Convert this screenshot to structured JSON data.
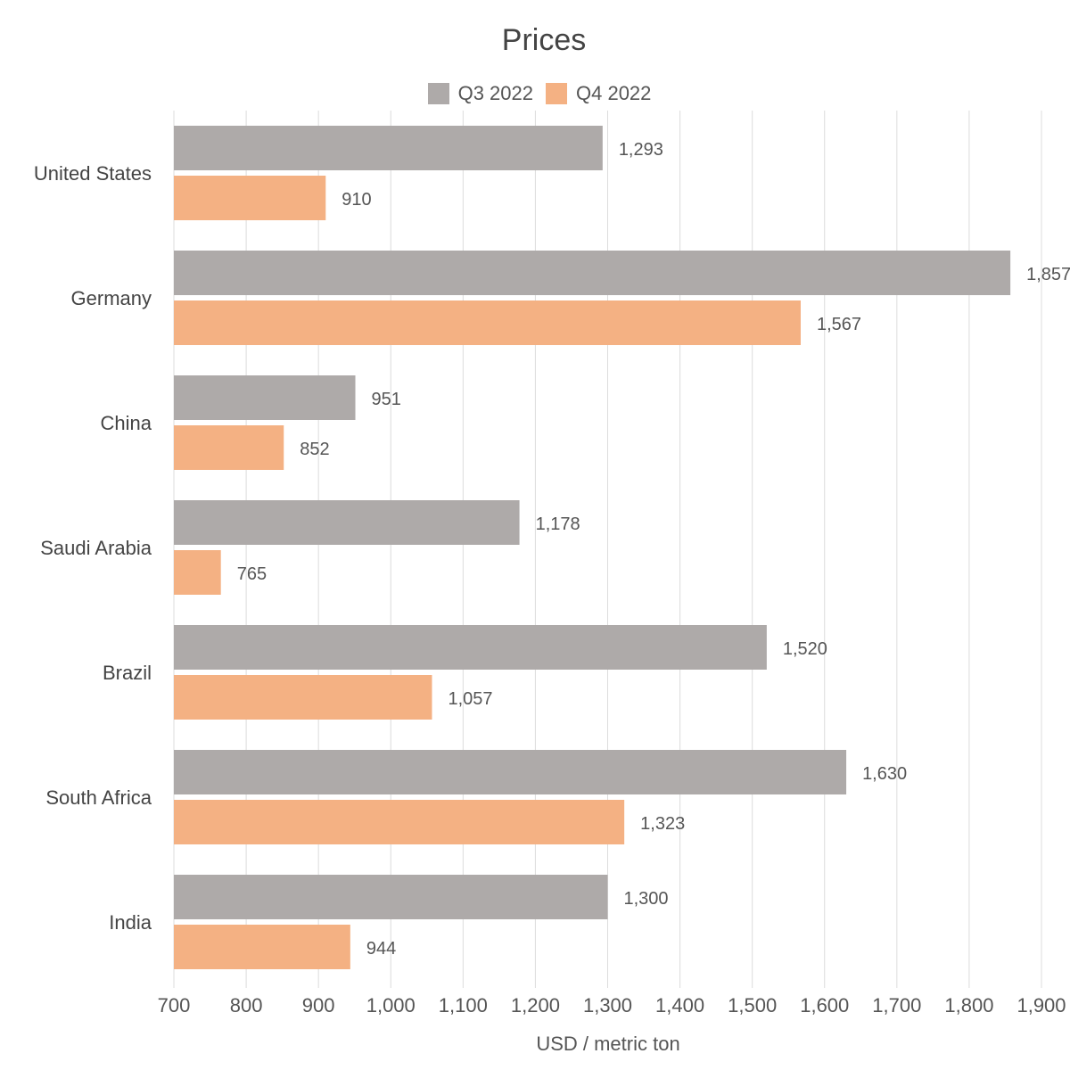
{
  "chart_data": {
    "type": "bar",
    "orientation": "horizontal",
    "title": "Prices",
    "xlabel": "USD / metric ton",
    "ylabel": "",
    "xlim": [
      700,
      1900
    ],
    "x_ticks": [
      700,
      800,
      900,
      1000,
      1100,
      1200,
      1300,
      1400,
      1500,
      1600,
      1700,
      1800,
      1900
    ],
    "x_tick_labels": [
      "700",
      "800",
      "900",
      "1,000",
      "1,100",
      "1,200",
      "1,300",
      "1,400",
      "1,500",
      "1,600",
      "1,700",
      "1,800",
      "1,900"
    ],
    "grid": true,
    "legend_position": "top-center",
    "categories": [
      "United States",
      "Germany",
      "China",
      "Saudi Arabia",
      "Brazil",
      "South Africa",
      "India"
    ],
    "series": [
      {
        "name": "Q3 2022",
        "color": "#aeaaa9",
        "values": [
          1293,
          1857,
          951,
          1178,
          1520,
          1630,
          1300
        ],
        "labels": [
          "1,293",
          "1,857",
          "951",
          "1,178",
          "1,520",
          "1,630",
          "1,300"
        ]
      },
      {
        "name": "Q4 2022",
        "color": "#f4b183",
        "values": [
          910,
          1567,
          852,
          765,
          1057,
          1323,
          944
        ],
        "labels": [
          "910",
          "1,567",
          "852",
          "765",
          "1,057",
          "1,323",
          "944"
        ]
      }
    ]
  }
}
